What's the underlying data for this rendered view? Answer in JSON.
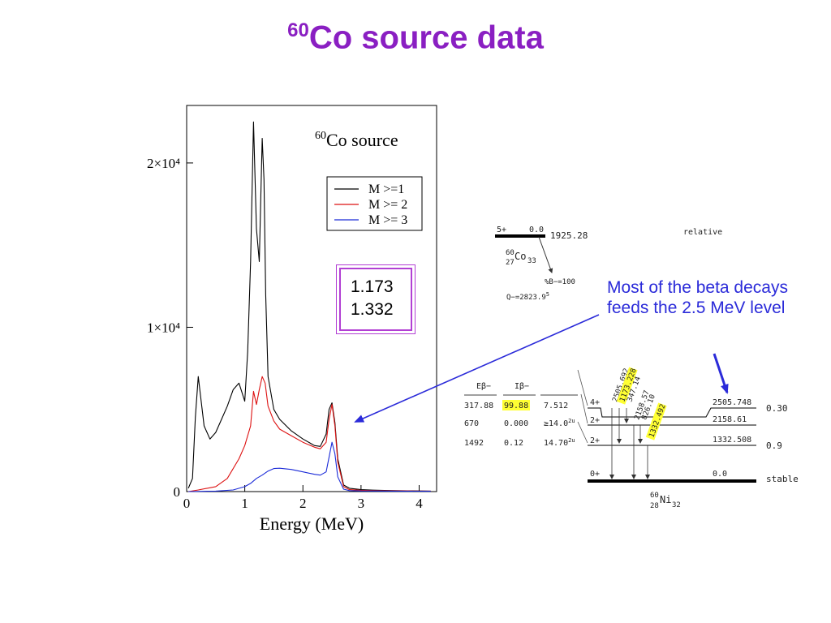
{
  "slide": {
    "title_sup": "60",
    "title_main": "Co source data",
    "annotation": "Most of the beta decays feeds the 2.5 MeV level",
    "peak_values": [
      "1.173",
      "1.332"
    ],
    "colors": {
      "title": "#8a1fc2",
      "annotation": "#2b2bd9",
      "box": "#b23fd4",
      "highlight": "#ffff33"
    }
  },
  "chart_data": {
    "type": "line",
    "title_sup": "60",
    "title": "Co source",
    "xlabel": "Energy (MeV)",
    "ylabel": "",
    "xlim": [
      0,
      4.3
    ],
    "ylim": [
      0,
      23500
    ],
    "x_ticks": [
      "0",
      "1",
      "2",
      "3",
      "4"
    ],
    "y_ticks": [
      {
        "value": 0,
        "label": "0"
      },
      {
        "value": 10000,
        "label": "1×10⁴"
      },
      {
        "value": 20000,
        "label": "2×10⁴"
      }
    ],
    "grid": false,
    "legend_position": "top-right",
    "series": [
      {
        "name": "M >=1",
        "color": "#000000",
        "x": [
          0.03,
          0.1,
          0.15,
          0.2,
          0.25,
          0.3,
          0.4,
          0.5,
          0.6,
          0.7,
          0.8,
          0.9,
          1.0,
          1.05,
          1.1,
          1.15,
          1.2,
          1.25,
          1.3,
          1.33,
          1.36,
          1.4,
          1.5,
          1.6,
          1.8,
          2.0,
          2.2,
          2.3,
          2.4,
          2.45,
          2.5,
          2.55,
          2.6,
          2.7,
          2.8,
          3.0,
          3.2,
          3.4,
          3.6,
          3.8,
          4.0,
          4.2
        ],
        "y": [
          200,
          800,
          4500,
          7000,
          5500,
          4000,
          3200,
          3600,
          4400,
          5200,
          6200,
          6600,
          5500,
          8500,
          14000,
          22500,
          16000,
          14000,
          21500,
          19000,
          12000,
          7000,
          5000,
          4400,
          3700,
          3200,
          2800,
          2750,
          3500,
          5000,
          5400,
          4200,
          2000,
          400,
          200,
          120,
          90,
          70,
          60,
          50,
          40,
          30
        ]
      },
      {
        "name": "M >= 2",
        "color": "#dd1111",
        "x": [
          0.03,
          0.2,
          0.5,
          0.7,
          0.9,
          1.0,
          1.1,
          1.15,
          1.2,
          1.25,
          1.3,
          1.35,
          1.4,
          1.5,
          1.6,
          1.8,
          2.0,
          2.2,
          2.3,
          2.4,
          2.45,
          2.5,
          2.55,
          2.6,
          2.7,
          2.8,
          3.0,
          3.2,
          3.5,
          3.8,
          4.2
        ],
        "y": [
          0,
          100,
          300,
          800,
          2000,
          2800,
          4000,
          6100,
          5300,
          6200,
          7000,
          6600,
          5200,
          4300,
          3800,
          3400,
          3000,
          2700,
          2600,
          3000,
          4400,
          5300,
          4000,
          1800,
          300,
          120,
          80,
          60,
          50,
          40,
          30
        ]
      },
      {
        "name": "M >= 3",
        "color": "#1a2ad8",
        "x": [
          0.03,
          0.5,
          0.8,
          1.0,
          1.1,
          1.2,
          1.3,
          1.4,
          1.5,
          1.6,
          1.8,
          2.0,
          2.2,
          2.3,
          2.4,
          2.45,
          2.5,
          2.55,
          2.6,
          2.7,
          2.8,
          3.0,
          3.5,
          4.2
        ],
        "y": [
          0,
          30,
          100,
          300,
          500,
          800,
          1000,
          1250,
          1400,
          1420,
          1350,
          1200,
          1050,
          1000,
          1200,
          2100,
          3000,
          2300,
          900,
          150,
          60,
          40,
          30,
          20
        ]
      }
    ]
  },
  "decay_scheme": {
    "parent": {
      "spin": "5+",
      "level": "0.0",
      "half_life": "1925.28",
      "mass": "60",
      "z": "27",
      "sym": "Co",
      "n": "33",
      "branch": "%B−=100",
      "qlabel": "Q−=2823.9",
      "qsup": "5"
    },
    "relative_label": "relative",
    "table_headers": [
      "Eβ−",
      "Iβ−",
      ""
    ],
    "table_rows": [
      {
        "e": "317.88",
        "i": "99.88",
        "logft": "7.512",
        "sup": ""
      },
      {
        "e": "670",
        "i": "0.000",
        "logft": "≥14.0",
        "sup": "2u"
      },
      {
        "e": "1492",
        "i": "0.12",
        "logft": "14.70",
        "sup": "2u"
      }
    ],
    "levels": [
      {
        "spin": "4+",
        "energy": "2505.748",
        "right": "0.30"
      },
      {
        "spin": "2+",
        "energy": "2158.61",
        "right": ""
      },
      {
        "spin": "2+",
        "energy": "1332.508",
        "right": "0.9"
      },
      {
        "spin": "0+",
        "energy": "0.0",
        "right": "stable"
      }
    ],
    "gammas": [
      "2505.692",
      "1173.228",
      "347.14",
      "2158.57",
      "826.10",
      "1332.492"
    ],
    "daughter": {
      "mass": "60",
      "z": "28",
      "sym": "Ni",
      "n": "32"
    }
  }
}
